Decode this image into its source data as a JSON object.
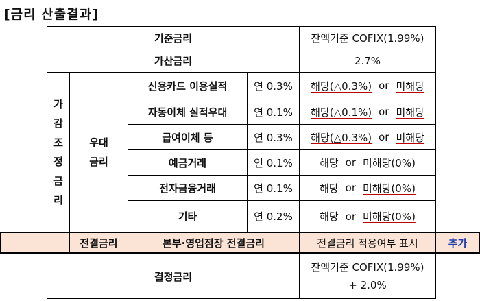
{
  "title": "[금리 산출결과]",
  "rows": {
    "base": {
      "label": "기준금리",
      "value": "잔액기준 COFIX(1.99%)"
    },
    "spread": {
      "label": "가산금리",
      "value": "2.7%"
    },
    "adjust_group": {
      "label": [
        "가",
        "감",
        "조",
        "정",
        "금",
        "리"
      ]
    },
    "pref_group": {
      "label": [
        "우대",
        "금리"
      ]
    },
    "items": [
      {
        "name": "신용카드 이용실적",
        "rate": "연 0.3%",
        "yes": "해당(△0.3%)",
        "or": "or",
        "no": "미해당"
      },
      {
        "name": "자동이체 실적우대",
        "rate": "연 0.1%",
        "yes": "해당(△0.1%)",
        "or": "or",
        "no": "미해당"
      },
      {
        "name": "급여이체 등",
        "rate": "연 0.3%",
        "yes": "해당(△0.3%)",
        "or": "or",
        "no": "미해당"
      },
      {
        "name": "예금거래",
        "rate": "연 0.1%",
        "yes": "해당",
        "or": "or",
        "no": "미해당(0%)"
      },
      {
        "name": "전자금융거래",
        "rate": "연 0.1%",
        "yes": "해당",
        "or": "or",
        "no": "미해당(0%)"
      },
      {
        "name": "기타",
        "rate": "연 0.2%",
        "yes": "해당",
        "or": "or",
        "no": "미해당(0%)"
      }
    ],
    "branch": {
      "group": "전결금리",
      "name": "본부·영업점장 전결금리",
      "value": "전결금리 적용여부 표시",
      "action": "추가"
    },
    "final": {
      "label": "결정금리",
      "line1": "잔액기준 COFIX(1.99%)",
      "line2": "+ 2.0%"
    }
  }
}
